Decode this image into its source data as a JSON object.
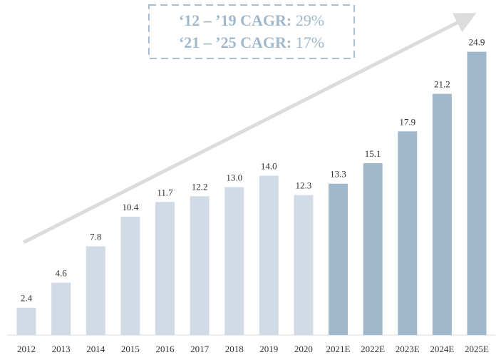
{
  "chart_data": {
    "type": "bar",
    "categories": [
      "2012",
      "2013",
      "2014",
      "2015",
      "2016",
      "2017",
      "2018",
      "2019",
      "2020",
      "2021E",
      "2022E",
      "2023E",
      "2024E",
      "2025E"
    ],
    "values": [
      2.4,
      4.6,
      7.8,
      10.4,
      11.7,
      12.2,
      13.0,
      14.0,
      12.3,
      13.3,
      15.1,
      17.9,
      21.2,
      24.9
    ],
    "value_labels": [
      "2.4",
      "4.6",
      "7.8",
      "10.4",
      "11.7",
      "12.2",
      "13.0",
      "14.0",
      "12.3",
      "13.3",
      "15.1",
      "17.9",
      "21.2",
      "24.9"
    ],
    "colors": [
      "#d1dbe6",
      "#d1dbe6",
      "#d1dbe6",
      "#d1dbe6",
      "#d1dbe6",
      "#d1dbe6",
      "#d1dbe6",
      "#d1dbe6",
      "#d1dbe6",
      "#9fb8cc",
      "#9fb8cc",
      "#9fb8cc",
      "#9fb8cc",
      "#9fb8cc"
    ],
    "ylim": [
      0,
      25
    ],
    "annotations": [
      {
        "label": "‘12 – ’19 CAGR:",
        "value": "29%"
      },
      {
        "label": "‘21 – ’25 CAGR:",
        "value": "17%"
      }
    ]
  }
}
